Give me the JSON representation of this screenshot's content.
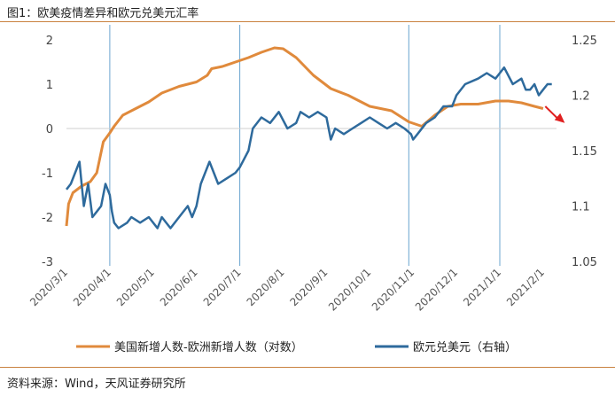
{
  "figure_title": "图1：欧美疫情差异和欧元兑美元汇率",
  "source": "资料来源：Wind，天风证券研究所",
  "colors": {
    "orange": "#e08a3c",
    "blue": "#2e6a9c",
    "vline": "#6aa4cf",
    "arrow": "#e02020"
  },
  "chart_data": {
    "type": "line",
    "left_axis": {
      "ticks": [
        2,
        1,
        0,
        -1,
        -2,
        -3
      ],
      "range": [
        -3,
        2
      ]
    },
    "right_axis": {
      "ticks": [
        1.25,
        1.2,
        1.15,
        1.1,
        1.05
      ],
      "range": [
        1.05,
        1.25
      ]
    },
    "x_ticks": [
      "2020/3/1",
      "2020/4/1",
      "2020/5/1",
      "2020/6/1",
      "2020/7/1",
      "2020/8/1",
      "2020/9/1",
      "2020/10/1",
      "2020/11/1",
      "2020/12/1",
      "2021/1/1",
      "2021/2/1"
    ],
    "vertical_markers": [
      1.0,
      4.0,
      7.9,
      10.0
    ],
    "series": [
      {
        "name": "美国新增人数-欧洲新增人数（对数）",
        "axis": "left",
        "points": [
          [
            0,
            -2.2
          ],
          [
            0.05,
            -1.7
          ],
          [
            0.15,
            -1.45
          ],
          [
            0.35,
            -1.3
          ],
          [
            0.55,
            -1.2
          ],
          [
            0.7,
            -1.0
          ],
          [
            0.85,
            -0.3
          ],
          [
            1.0,
            -0.1
          ],
          [
            1.1,
            0.05
          ],
          [
            1.3,
            0.3
          ],
          [
            1.6,
            0.45
          ],
          [
            1.9,
            0.6
          ],
          [
            2.2,
            0.8
          ],
          [
            2.6,
            0.95
          ],
          [
            3.0,
            1.05
          ],
          [
            3.25,
            1.2
          ],
          [
            3.35,
            1.35
          ],
          [
            3.6,
            1.4
          ],
          [
            3.9,
            1.5
          ],
          [
            4.2,
            1.6
          ],
          [
            4.5,
            1.72
          ],
          [
            4.8,
            1.82
          ],
          [
            5.0,
            1.8
          ],
          [
            5.3,
            1.6
          ],
          [
            5.7,
            1.2
          ],
          [
            6.1,
            0.9
          ],
          [
            6.5,
            0.75
          ],
          [
            7.0,
            0.5
          ],
          [
            7.5,
            0.4
          ],
          [
            7.9,
            0.15
          ],
          [
            8.2,
            0.05
          ],
          [
            8.5,
            0.3
          ],
          [
            8.8,
            0.5
          ],
          [
            9.1,
            0.55
          ],
          [
            9.5,
            0.55
          ],
          [
            9.9,
            0.62
          ],
          [
            10.2,
            0.62
          ],
          [
            10.5,
            0.58
          ],
          [
            10.8,
            0.5
          ],
          [
            11.0,
            0.45
          ]
        ]
      },
      {
        "name": "欧元兑美元（右轴）",
        "axis": "right",
        "points": [
          [
            0,
            1.115
          ],
          [
            0.1,
            1.12
          ],
          [
            0.2,
            1.13
          ],
          [
            0.3,
            1.14
          ],
          [
            0.35,
            1.12
          ],
          [
            0.4,
            1.1
          ],
          [
            0.5,
            1.12
          ],
          [
            0.6,
            1.09
          ],
          [
            0.7,
            1.095
          ],
          [
            0.8,
            1.1
          ],
          [
            0.9,
            1.12
          ],
          [
            1.0,
            1.11
          ],
          [
            1.05,
            1.095
          ],
          [
            1.1,
            1.085
          ],
          [
            1.2,
            1.08
          ],
          [
            1.4,
            1.085
          ],
          [
            1.5,
            1.09
          ],
          [
            1.7,
            1.085
          ],
          [
            1.9,
            1.09
          ],
          [
            2.1,
            1.08
          ],
          [
            2.2,
            1.09
          ],
          [
            2.4,
            1.08
          ],
          [
            2.6,
            1.09
          ],
          [
            2.8,
            1.1
          ],
          [
            2.9,
            1.09
          ],
          [
            3.0,
            1.1
          ],
          [
            3.1,
            1.12
          ],
          [
            3.2,
            1.13
          ],
          [
            3.3,
            1.14
          ],
          [
            3.5,
            1.12
          ],
          [
            3.7,
            1.125
          ],
          [
            3.9,
            1.13
          ],
          [
            4.0,
            1.135
          ],
          [
            4.2,
            1.15
          ],
          [
            4.3,
            1.17
          ],
          [
            4.5,
            1.18
          ],
          [
            4.7,
            1.175
          ],
          [
            4.9,
            1.185
          ],
          [
            5.1,
            1.17
          ],
          [
            5.3,
            1.175
          ],
          [
            5.4,
            1.185
          ],
          [
            5.6,
            1.18
          ],
          [
            5.8,
            1.185
          ],
          [
            6.0,
            1.18
          ],
          [
            6.1,
            1.16
          ],
          [
            6.2,
            1.17
          ],
          [
            6.4,
            1.165
          ],
          [
            6.6,
            1.17
          ],
          [
            6.8,
            1.175
          ],
          [
            7.0,
            1.18
          ],
          [
            7.2,
            1.175
          ],
          [
            7.4,
            1.17
          ],
          [
            7.6,
            1.175
          ],
          [
            7.8,
            1.17
          ],
          [
            7.95,
            1.165
          ],
          [
            8.0,
            1.16
          ],
          [
            8.1,
            1.165
          ],
          [
            8.3,
            1.175
          ],
          [
            8.5,
            1.18
          ],
          [
            8.7,
            1.19
          ],
          [
            8.9,
            1.19
          ],
          [
            9.0,
            1.2
          ],
          [
            9.2,
            1.21
          ],
          [
            9.5,
            1.215
          ],
          [
            9.7,
            1.22
          ],
          [
            9.9,
            1.215
          ],
          [
            10.0,
            1.22
          ],
          [
            10.1,
            1.225
          ],
          [
            10.3,
            1.21
          ],
          [
            10.5,
            1.215
          ],
          [
            10.6,
            1.205
          ],
          [
            10.7,
            1.205
          ],
          [
            10.8,
            1.21
          ],
          [
            10.9,
            1.2
          ],
          [
            11.0,
            1.205
          ],
          [
            11.1,
            1.21
          ],
          [
            11.2,
            1.21
          ]
        ]
      }
    ],
    "arrow_annotation": {
      "from": [
        11.05,
        1.19
      ],
      "to": [
        11.5,
        1.175
      ]
    }
  }
}
